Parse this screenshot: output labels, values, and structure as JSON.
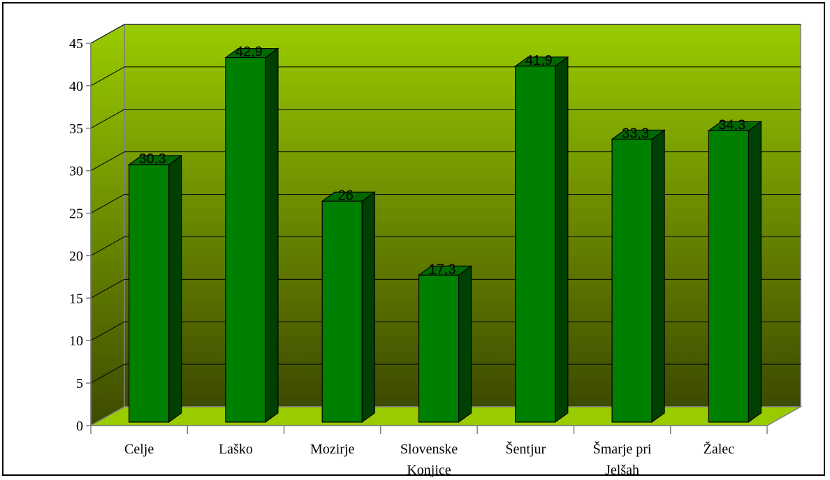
{
  "chart_data": {
    "type": "bar",
    "categories": [
      "Celje",
      "Laško",
      "Mozirje",
      "Slovenske Konjice",
      "Šentjur",
      "Šmarje pri Jelšah",
      "Žalec"
    ],
    "category_lines": [
      [
        "Celje"
      ],
      [
        "Laško"
      ],
      [
        "Mozirje"
      ],
      [
        "Slovenske",
        "Konjice"
      ],
      [
        "Šentjur"
      ],
      [
        "Šmarje pri",
        "Jelšah"
      ],
      [
        "Žalec"
      ]
    ],
    "values": [
      30.3,
      42.9,
      26,
      17.3,
      41.9,
      33.3,
      34.3
    ],
    "value_labels": [
      "30,3",
      "42,9",
      "26",
      "17,3",
      "41,9",
      "33,3",
      "34,3"
    ],
    "yticks": [
      0,
      5,
      10,
      15,
      20,
      25,
      30,
      35,
      40,
      45
    ],
    "ylim": [
      0,
      45
    ],
    "grid": true,
    "legend": "none",
    "three_d": true,
    "colors": {
      "bar_front": "#008000",
      "bar_side": "#004000",
      "bar_top": "#006a00",
      "floor": "#99cc00",
      "back_wall_top": "#99cc00",
      "back_wall_bottom": "#3d4a00",
      "gridline": "#000000",
      "axis": "#808080"
    }
  }
}
